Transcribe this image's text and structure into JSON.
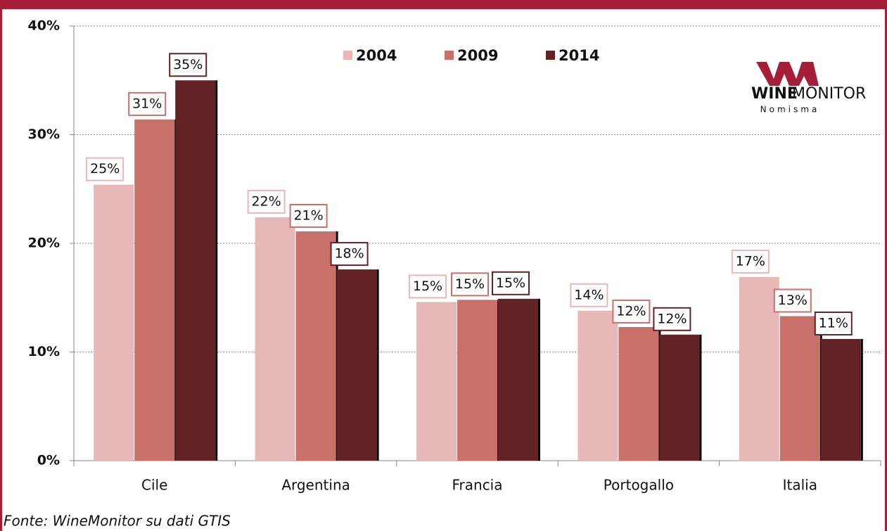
{
  "chart_data": {
    "type": "bar",
    "categories": [
      "Cile",
      "Argentina",
      "Francia",
      "Portogallo",
      "Italia"
    ],
    "series": [
      {
        "name": "2004",
        "color": "#e8b8b8",
        "values": [
          25.4,
          22.4,
          14.6,
          13.8,
          16.9
        ],
        "value_labels": [
          "25%",
          "22%",
          "15%",
          "14%",
          "17%"
        ]
      },
      {
        "name": "2009",
        "color": "#c9706b",
        "values": [
          31.4,
          21.1,
          14.8,
          12.3,
          13.3
        ],
        "value_labels": [
          "31%",
          "21%",
          "15%",
          "12%",
          "13%"
        ]
      },
      {
        "name": "2014",
        "color": "#632224",
        "values": [
          35.0,
          17.6,
          14.9,
          11.6,
          11.2
        ],
        "value_labels": [
          "35%",
          "18%",
          "15%",
          "12%",
          "11%"
        ]
      }
    ],
    "ylim": [
      0,
      40
    ],
    "yticks": [
      {
        "value": 0,
        "label": "0%"
      },
      {
        "value": 10,
        "label": "10%"
      },
      {
        "value": 20,
        "label": "20%"
      },
      {
        "value": 30,
        "label": "30%"
      },
      {
        "value": 40,
        "label": "40%"
      }
    ],
    "grid": true,
    "legend": "top",
    "source": "Fonte: WineMonitor su dati GTIS",
    "logo": {
      "brand_bold": "WINE",
      "brand": "MONITOR",
      "sub": "Nomisma"
    }
  }
}
